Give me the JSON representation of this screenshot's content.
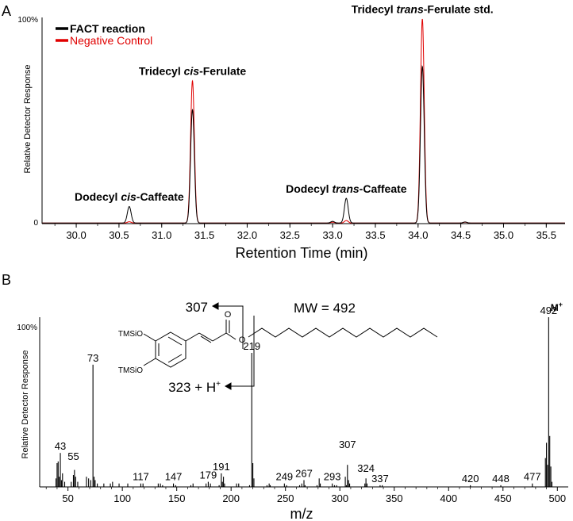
{
  "chart_data": [
    {
      "type": "line",
      "panel_label": "A",
      "ylabel": "Relative Detector Response",
      "xlabel": "Retention Time (min)",
      "xlim": [
        29.6,
        35.72
      ],
      "ylim": [
        0,
        100
      ],
      "y_ticks": [
        "0",
        "100%"
      ],
      "x_ticks": [
        "30.0",
        "30.5",
        "31.0",
        "31.5",
        "32.0",
        "32.5",
        "33.0",
        "33.5",
        "34.0",
        "34.5",
        "35.0",
        "35.5"
      ],
      "grid": false,
      "legend_position": "top-left",
      "series": [
        {
          "name": "FACT reaction",
          "color": "#000000",
          "peaks": [
            {
              "rt": 30.62,
              "height": 8.0
            },
            {
              "rt": 31.36,
              "height": 55.0
            },
            {
              "rt": 33.0,
              "height": 0.8
            },
            {
              "rt": 33.16,
              "height": 12.0
            },
            {
              "rt": 34.05,
              "height": 76.0
            },
            {
              "rt": 34.55,
              "height": 0.5
            }
          ]
        },
        {
          "name": "Negative Control",
          "color": "#e00000",
          "peaks": [
            {
              "rt": 30.62,
              "height": 0.6
            },
            {
              "rt": 31.36,
              "height": 69.0
            },
            {
              "rt": 33.0,
              "height": 0.4
            },
            {
              "rt": 33.16,
              "height": 1.2
            },
            {
              "rt": 34.05,
              "height": 99.0
            },
            {
              "rt": 34.55,
              "height": 0.4
            }
          ]
        }
      ],
      "annotations": [
        {
          "rt": 30.62,
          "y": 8.0,
          "prefix": "Dodecyl ",
          "italic": "cis",
          "suffix": "-Caffeate"
        },
        {
          "rt": 31.36,
          "y": 69.0,
          "prefix": "Tridecyl ",
          "italic": "cis",
          "suffix": "-Ferulate"
        },
        {
          "rt": 33.16,
          "y": 12.0,
          "prefix": "Dodecyl ",
          "italic": "trans",
          "suffix": "-Caffeate"
        },
        {
          "rt": 34.05,
          "y": 99.0,
          "prefix": "Tridecyl ",
          "italic": "trans",
          "suffix": "-Ferulate std."
        }
      ]
    },
    {
      "type": "bar",
      "panel_label": "B",
      "ylabel": "Relative Detector Response",
      "xlabel": "m/z",
      "xlim": [
        24,
        510
      ],
      "ylim": [
        0,
        100
      ],
      "y_ticks": [
        "100%"
      ],
      "x_ticks": [
        50,
        100,
        150,
        200,
        250,
        300,
        350,
        400,
        450,
        500
      ],
      "peaks": [
        [
          39,
          5
        ],
        [
          40,
          14
        ],
        [
          41,
          15
        ],
        [
          42,
          6
        ],
        [
          43,
          20
        ],
        [
          44,
          4
        ],
        [
          45,
          8
        ],
        [
          47,
          3
        ],
        [
          53,
          3
        ],
        [
          55,
          7
        ],
        [
          56,
          10
        ],
        [
          57,
          6
        ],
        [
          59,
          3
        ],
        [
          67,
          6
        ],
        [
          69,
          5
        ],
        [
          71,
          4
        ],
        [
          73,
          72
        ],
        [
          74,
          6
        ],
        [
          75,
          4
        ],
        [
          77,
          2
        ],
        [
          83,
          2
        ],
        [
          89,
          2
        ],
        [
          91,
          3
        ],
        [
          97,
          2
        ],
        [
          105,
          2
        ],
        [
          117,
          2
        ],
        [
          119,
          2
        ],
        [
          133,
          2
        ],
        [
          135,
          2
        ],
        [
          137,
          1
        ],
        [
          147,
          2
        ],
        [
          149,
          1
        ],
        [
          163,
          1
        ],
        [
          165,
          2
        ],
        [
          177,
          2
        ],
        [
          179,
          3
        ],
        [
          181,
          2
        ],
        [
          189,
          1
        ],
        [
          191,
          8
        ],
        [
          192,
          3
        ],
        [
          193,
          6
        ],
        [
          194,
          2
        ],
        [
          205,
          2
        ],
        [
          207,
          2
        ],
        [
          217,
          1
        ],
        [
          219,
          79
        ],
        [
          220,
          14
        ],
        [
          221,
          5
        ],
        [
          233,
          1
        ],
        [
          235,
          2
        ],
        [
          236,
          1
        ],
        [
          249,
          2
        ],
        [
          251,
          1
        ],
        [
          263,
          1
        ],
        [
          265,
          2
        ],
        [
          267,
          4
        ],
        [
          268,
          1
        ],
        [
          279,
          1
        ],
        [
          281,
          5
        ],
        [
          282,
          2
        ],
        [
          293,
          2
        ],
        [
          295,
          1
        ],
        [
          297,
          1
        ],
        [
          305,
          6
        ],
        [
          306,
          1
        ],
        [
          307,
          13
        ],
        [
          308,
          4
        ],
        [
          309,
          2
        ],
        [
          323,
          2
        ],
        [
          324,
          5
        ],
        [
          325,
          2
        ],
        [
          337,
          1
        ],
        [
          339,
          1
        ],
        [
          420,
          1
        ],
        [
          448,
          1
        ],
        [
          477,
          2
        ],
        [
          489,
          17
        ],
        [
          490,
          26
        ],
        [
          491,
          13
        ],
        [
          492,
          100
        ],
        [
          493,
          30
        ],
        [
          494,
          12
        ],
        [
          495,
          3
        ]
      ],
      "peak_labels": [
        {
          "mz": 43,
          "y": 20,
          "text": "43"
        },
        {
          "mz": 55,
          "y": 14,
          "text": "55"
        },
        {
          "mz": 73,
          "y": 72,
          "text": "73"
        },
        {
          "mz": 117,
          "y": 2,
          "text": "117"
        },
        {
          "mz": 147,
          "y": 2,
          "text": "147"
        },
        {
          "mz": 179,
          "y": 3,
          "text": "179"
        },
        {
          "mz": 191,
          "y": 8,
          "text": "191"
        },
        {
          "mz": 219,
          "y": 79,
          "text": "219"
        },
        {
          "mz": 249,
          "y": 2,
          "text": "249"
        },
        {
          "mz": 267,
          "y": 4,
          "text": "267"
        },
        {
          "mz": 293,
          "y": 2,
          "text": "293"
        },
        {
          "mz": 307,
          "y": 21,
          "text": "307"
        },
        {
          "mz": 324,
          "y": 7,
          "text": "324"
        },
        {
          "mz": 337,
          "y": 1,
          "text": "337"
        },
        {
          "mz": 420,
          "y": 1,
          "text": "420"
        },
        {
          "mz": 448,
          "y": 1,
          "text": "448"
        },
        {
          "mz": 477,
          "y": 2,
          "text": "477"
        },
        {
          "mz": 492,
          "y": 100,
          "text": "492"
        }
      ],
      "molecular_ion_label": "M",
      "molecular_ion_sup": "+",
      "structure": {
        "mw_label": "MW = 492",
        "fragment_upper": "307",
        "fragment_lower": "323 + H",
        "fragment_lower_sup": "+",
        "substituent_1": "TMSiO",
        "substituent_2": "TMSiO",
        "carbonyl_o": "O",
        "ester_o": "O"
      }
    }
  ]
}
